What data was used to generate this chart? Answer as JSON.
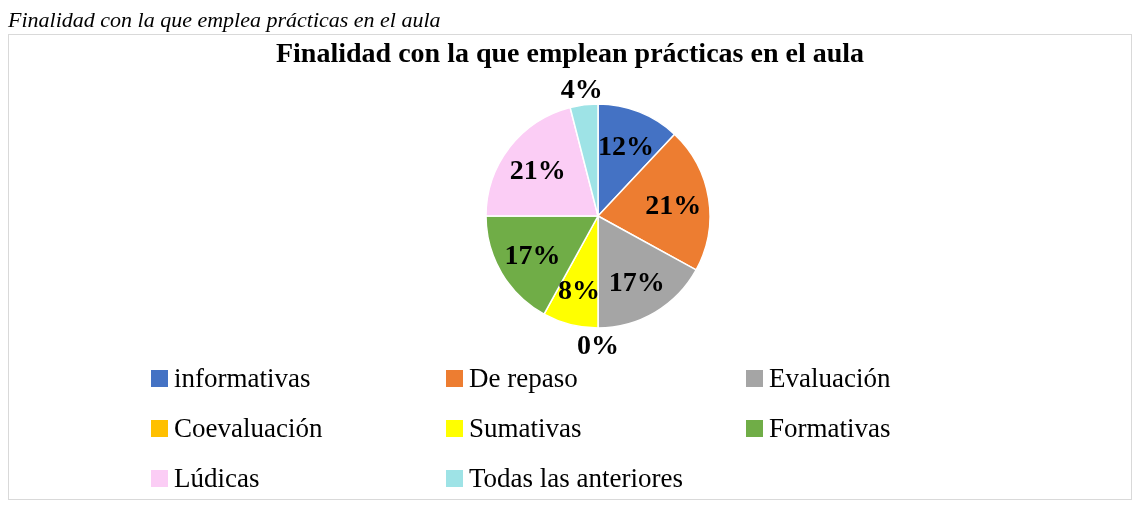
{
  "chart_data": {
    "type": "pie",
    "title": "Finalidad con la que emplean prácticas en el aula",
    "annotations": [
      "Finalidad con la que emplea prácticas en el aula"
    ],
    "categories": [
      "informativas",
      "De repaso",
      "Evaluación",
      "Coevaluación",
      "Sumativas",
      "Formativas",
      "Lúdicas",
      "Todas las anteriores"
    ],
    "values": [
      12,
      21,
      17,
      0,
      8,
      17,
      21,
      4
    ],
    "value_labels": [
      "12%",
      "21%",
      "17%",
      "0%",
      "8%",
      "17%",
      "21%",
      "4%"
    ],
    "colors": [
      "#4472c4",
      "#ed7d31",
      "#a5a5a5",
      "#ffc000",
      "#ffff00",
      "#70ad47",
      "#fbcdf5",
      "#9ee3e6"
    ],
    "legend": "bottom"
  }
}
